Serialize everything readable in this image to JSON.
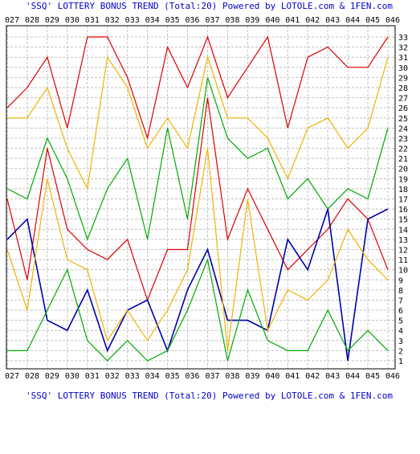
{
  "header": {
    "top": "'SSQ' LOTTERY BONUS TREND (Total:20)  Powered by LOTOLE.com & 1FEN.com",
    "bottom": "'SSQ' LOTTERY BONUS TREND (Total:20)  Powered by LOTOLE.com & 1FEN.com"
  },
  "chart_data": {
    "type": "line",
    "title": "'SSQ' LOTTERY BONUS TREND (Total:20)  Powered by LOTOLE.com & 1FEN.com",
    "x": [
      "027",
      "028",
      "029",
      "030",
      "031",
      "032",
      "033",
      "034",
      "035",
      "036",
      "037",
      "038",
      "039",
      "040",
      "041",
      "042",
      "043",
      "044",
      "045",
      "046"
    ],
    "ylim": [
      1,
      33
    ],
    "y_ticks": [
      "1",
      "2",
      "3",
      "4",
      "5",
      "6",
      "7",
      "8",
      "9",
      "10",
      "11",
      "12",
      "13",
      "14",
      "15",
      "16",
      "17",
      "18",
      "19",
      "20",
      "21",
      "22",
      "23",
      "24",
      "25",
      "26",
      "27",
      "28",
      "29",
      "30",
      "31",
      "32",
      "33"
    ],
    "grid": true,
    "series": [
      {
        "color": "#dd0000",
        "values": [
          26,
          28,
          31,
          24,
          33,
          33,
          29,
          23,
          32,
          28,
          33,
          27,
          30,
          33,
          24,
          31,
          32,
          30,
          30,
          33
        ]
      },
      {
        "color": "#f0b400",
        "values": [
          25,
          25,
          28,
          22,
          18,
          31,
          28,
          22,
          25,
          22,
          31,
          25,
          25,
          23,
          19,
          24,
          25,
          22,
          24,
          31
        ]
      },
      {
        "color": "#00aa00",
        "values": [
          18,
          17,
          23,
          19,
          13,
          18,
          21,
          13,
          24,
          15,
          29,
          23,
          21,
          22,
          17,
          19,
          16,
          18,
          17,
          24
        ]
      },
      {
        "color": "#dd0000",
        "values": [
          17,
          9,
          22,
          14,
          12,
          11,
          13,
          7,
          12,
          12,
          27,
          13,
          18,
          14,
          10,
          12,
          14,
          17,
          15,
          10
        ]
      },
      {
        "color": "#0000aa",
        "values": [
          13,
          15,
          5,
          4,
          8,
          2,
          6,
          7,
          2,
          8,
          12,
          5,
          5,
          4,
          13,
          10,
          16,
          1,
          15,
          16
        ]
      },
      {
        "color": "#f0b400",
        "values": [
          12,
          6,
          19,
          11,
          10,
          3,
          6,
          3,
          6,
          10,
          22,
          2,
          17,
          4,
          8,
          7,
          9,
          14,
          11,
          9
        ]
      },
      {
        "color": "#00aa00",
        "values": [
          2,
          2,
          6,
          10,
          3,
          1,
          3,
          1,
          2,
          6,
          11,
          1,
          8,
          3,
          2,
          2,
          6,
          2,
          4,
          2
        ]
      }
    ]
  }
}
